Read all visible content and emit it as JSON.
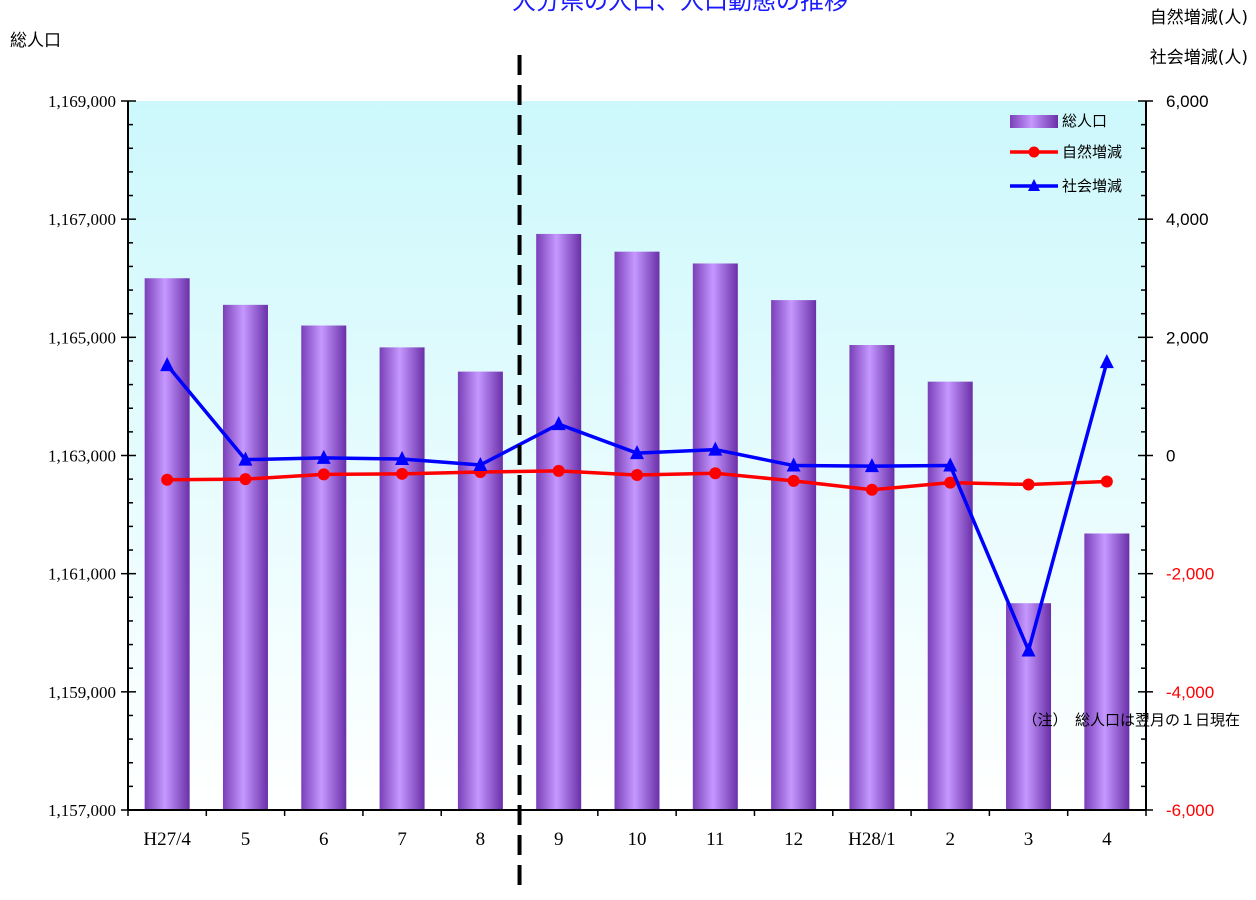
{
  "chart_data": {
    "type": "bar+line",
    "title": "大分県の人口、人口動態の推移",
    "left_axis_label": "総人口",
    "right_axis_labels": [
      "自然増減(人)",
      "社会増減(人)"
    ],
    "categories": [
      "H27/4",
      "5",
      "6",
      "7",
      "8",
      "9",
      "10",
      "11",
      "12",
      "H28/1",
      "2",
      "3",
      "4"
    ],
    "left_axis": {
      "min": 1157000,
      "max": 1169000,
      "ticks": [
        "1,169,000",
        "1,167,000",
        "1,165,000",
        "1,163,000",
        "1,161,000",
        "1,159,000",
        "1,157,000"
      ]
    },
    "right_axis": {
      "min": -6000,
      "max": 6000,
      "ticks": [
        "6,000",
        "4,000",
        "2,000",
        "0",
        "-2,000",
        "-4,000",
        "-6,000"
      ]
    },
    "series": [
      {
        "name": "総人口",
        "type": "bar",
        "axis": "left",
        "values": [
          1166000,
          1165550,
          1165200,
          1164830,
          1164420,
          1166750,
          1166450,
          1166250,
          1165630,
          1164870,
          1164250,
          1160500,
          1161680
        ]
      },
      {
        "name": "自然増減",
        "type": "line",
        "axis": "right",
        "color": "#ff0000",
        "marker": "circle",
        "values": [
          -410,
          -400,
          -320,
          -310,
          -280,
          -260,
          -330,
          -300,
          -430,
          -580,
          -460,
          -490,
          -440
        ]
      },
      {
        "name": "社会増減",
        "type": "line",
        "axis": "right",
        "color": "#0000ff",
        "marker": "triangle",
        "values": [
          1530,
          -70,
          -40,
          -60,
          -160,
          530,
          40,
          100,
          -170,
          -180,
          -170,
          -3300,
          1580
        ]
      }
    ],
    "divider_after_category": "8",
    "legend_position": "top-right",
    "background_gradient": [
      "#ccf8fc",
      "#ffffff"
    ],
    "negative_tick_color": "#ff0000",
    "note": "（注）　総人口は翌月の１日現在"
  }
}
